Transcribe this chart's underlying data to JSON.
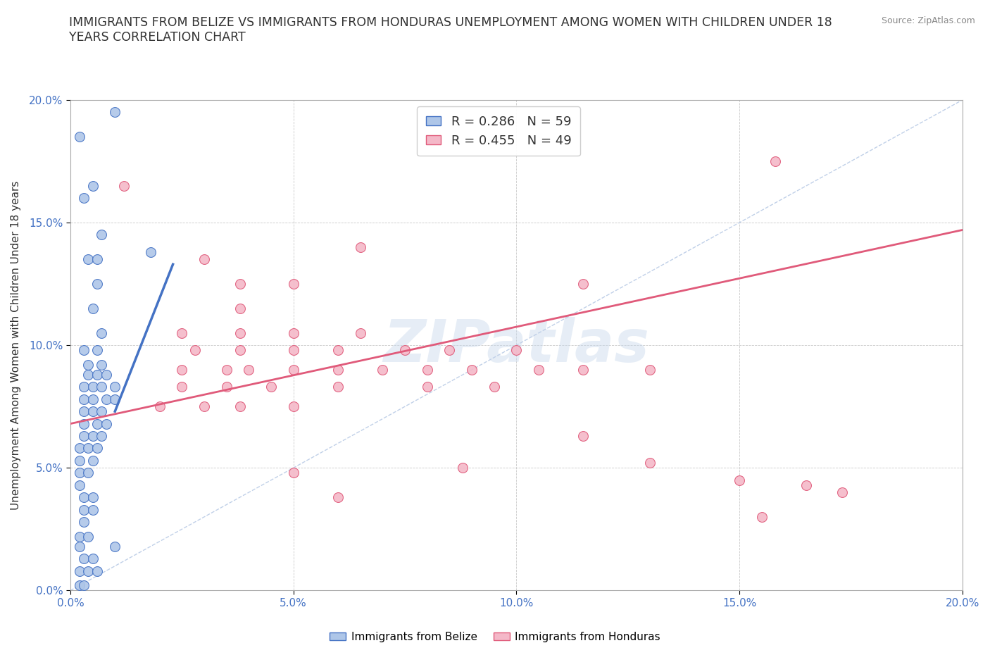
{
  "title": "IMMIGRANTS FROM BELIZE VS IMMIGRANTS FROM HONDURAS UNEMPLOYMENT AMONG WOMEN WITH CHILDREN UNDER 18\nYEARS CORRELATION CHART",
  "source_text": "Source: ZipAtlas.com",
  "ylabel": "Unemployment Among Women with Children Under 18 years",
  "xlim": [
    0.0,
    0.2
  ],
  "ylim": [
    0.0,
    0.2
  ],
  "xticks": [
    0.0,
    0.05,
    0.1,
    0.15,
    0.2
  ],
  "yticks": [
    0.0,
    0.05,
    0.1,
    0.15,
    0.2
  ],
  "belize_R": 0.286,
  "belize_N": 59,
  "honduras_R": 0.455,
  "honduras_N": 49,
  "belize_color": "#aec6e8",
  "honduras_color": "#f4b8c8",
  "belize_line_color": "#4472c4",
  "honduras_line_color": "#e05a7a",
  "diagonal_color": "#c0d0e8",
  "watermark": "ZIPatlas",
  "belize_line": [
    [
      0.01,
      0.073
    ],
    [
      0.023,
      0.133
    ]
  ],
  "honduras_line": [
    [
      0.0,
      0.068
    ],
    [
      0.2,
      0.147
    ]
  ],
  "belize_scatter": [
    [
      0.002,
      0.185
    ],
    [
      0.005,
      0.165
    ],
    [
      0.003,
      0.16
    ],
    [
      0.007,
      0.145
    ],
    [
      0.004,
      0.135
    ],
    [
      0.006,
      0.135
    ],
    [
      0.006,
      0.125
    ],
    [
      0.005,
      0.115
    ],
    [
      0.007,
      0.105
    ],
    [
      0.003,
      0.098
    ],
    [
      0.006,
      0.098
    ],
    [
      0.004,
      0.092
    ],
    [
      0.007,
      0.092
    ],
    [
      0.004,
      0.088
    ],
    [
      0.006,
      0.088
    ],
    [
      0.008,
      0.088
    ],
    [
      0.003,
      0.083
    ],
    [
      0.005,
      0.083
    ],
    [
      0.007,
      0.083
    ],
    [
      0.01,
      0.083
    ],
    [
      0.003,
      0.078
    ],
    [
      0.005,
      0.078
    ],
    [
      0.008,
      0.078
    ],
    [
      0.01,
      0.078
    ],
    [
      0.003,
      0.073
    ],
    [
      0.005,
      0.073
    ],
    [
      0.007,
      0.073
    ],
    [
      0.003,
      0.068
    ],
    [
      0.006,
      0.068
    ],
    [
      0.008,
      0.068
    ],
    [
      0.003,
      0.063
    ],
    [
      0.005,
      0.063
    ],
    [
      0.007,
      0.063
    ],
    [
      0.002,
      0.058
    ],
    [
      0.004,
      0.058
    ],
    [
      0.006,
      0.058
    ],
    [
      0.002,
      0.053
    ],
    [
      0.005,
      0.053
    ],
    [
      0.002,
      0.048
    ],
    [
      0.004,
      0.048
    ],
    [
      0.002,
      0.043
    ],
    [
      0.003,
      0.038
    ],
    [
      0.005,
      0.038
    ],
    [
      0.003,
      0.033
    ],
    [
      0.005,
      0.033
    ],
    [
      0.003,
      0.028
    ],
    [
      0.002,
      0.022
    ],
    [
      0.004,
      0.022
    ],
    [
      0.002,
      0.018
    ],
    [
      0.01,
      0.018
    ],
    [
      0.003,
      0.013
    ],
    [
      0.005,
      0.013
    ],
    [
      0.002,
      0.008
    ],
    [
      0.004,
      0.008
    ],
    [
      0.006,
      0.008
    ],
    [
      0.002,
      0.002
    ],
    [
      0.003,
      0.002
    ],
    [
      0.01,
      0.195
    ],
    [
      0.018,
      0.138
    ]
  ],
  "honduras_scatter": [
    [
      0.012,
      0.165
    ],
    [
      0.03,
      0.135
    ],
    [
      0.038,
      0.125
    ],
    [
      0.05,
      0.125
    ],
    [
      0.065,
      0.14
    ],
    [
      0.038,
      0.115
    ],
    [
      0.025,
      0.105
    ],
    [
      0.038,
      0.105
    ],
    [
      0.05,
      0.105
    ],
    [
      0.065,
      0.105
    ],
    [
      0.028,
      0.098
    ],
    [
      0.038,
      0.098
    ],
    [
      0.05,
      0.098
    ],
    [
      0.06,
      0.098
    ],
    [
      0.075,
      0.098
    ],
    [
      0.085,
      0.098
    ],
    [
      0.1,
      0.098
    ],
    [
      0.025,
      0.09
    ],
    [
      0.035,
      0.09
    ],
    [
      0.04,
      0.09
    ],
    [
      0.05,
      0.09
    ],
    [
      0.06,
      0.09
    ],
    [
      0.07,
      0.09
    ],
    [
      0.08,
      0.09
    ],
    [
      0.09,
      0.09
    ],
    [
      0.105,
      0.09
    ],
    [
      0.115,
      0.09
    ],
    [
      0.13,
      0.09
    ],
    [
      0.025,
      0.083
    ],
    [
      0.035,
      0.083
    ],
    [
      0.045,
      0.083
    ],
    [
      0.06,
      0.083
    ],
    [
      0.08,
      0.083
    ],
    [
      0.095,
      0.083
    ],
    [
      0.02,
      0.075
    ],
    [
      0.03,
      0.075
    ],
    [
      0.038,
      0.075
    ],
    [
      0.05,
      0.075
    ],
    [
      0.115,
      0.125
    ],
    [
      0.158,
      0.175
    ],
    [
      0.115,
      0.063
    ],
    [
      0.13,
      0.052
    ],
    [
      0.165,
      0.043
    ],
    [
      0.155,
      0.03
    ],
    [
      0.15,
      0.045
    ],
    [
      0.173,
      0.04
    ],
    [
      0.05,
      0.048
    ],
    [
      0.088,
      0.05
    ],
    [
      0.06,
      0.038
    ]
  ]
}
